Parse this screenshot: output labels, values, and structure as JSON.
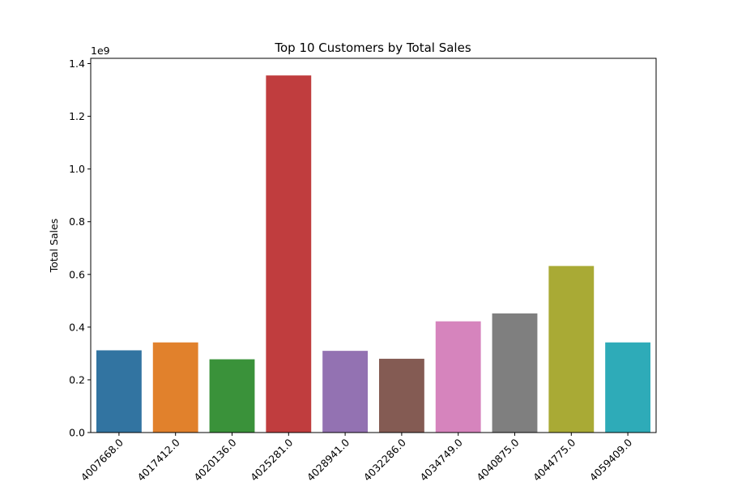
{
  "chart_data": {
    "type": "bar",
    "title": "Top 10 Customers by Total Sales",
    "xlabel": "",
    "ylabel": "Total Sales",
    "y_offset_label": "1e9",
    "y_scale": 1000000000,
    "ylim": [
      0,
      1420000000
    ],
    "yticks": [
      0.0,
      0.2,
      0.4,
      0.6,
      0.8,
      1.0,
      1.2,
      1.4
    ],
    "grid": false,
    "categories": [
      "4007668.0",
      "4017412.0",
      "4020136.0",
      "4025281.0",
      "4028941.0",
      "4032286.0",
      "4034749.0",
      "4040875.0",
      "4044775.0",
      "4059409.0"
    ],
    "values": [
      312000000,
      342000000,
      278000000,
      1355000000,
      310000000,
      280000000,
      422000000,
      452000000,
      632000000,
      342000000
    ],
    "colors": [
      "#3274a1",
      "#e1812c",
      "#3a923a",
      "#c03d3e",
      "#9372b2",
      "#845b53",
      "#d684bd",
      "#7f7f7f",
      "#a9aa35",
      "#2eabb8"
    ]
  }
}
